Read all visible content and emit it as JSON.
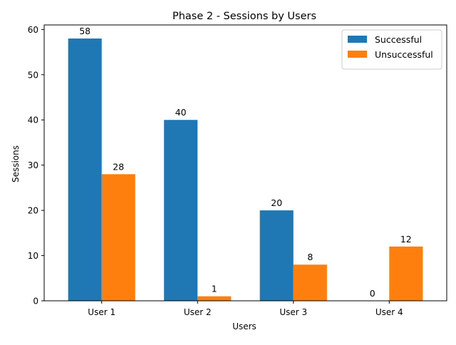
{
  "chart_data": {
    "type": "bar",
    "title": "Phase 2 - Sessions by Users",
    "xlabel": "Users",
    "ylabel": "Sessions",
    "categories": [
      "User 1",
      "User 2",
      "User 3",
      "User 4"
    ],
    "series": [
      {
        "name": "Successful",
        "values": [
          58,
          40,
          20,
          0
        ],
        "color": "#1f77b4"
      },
      {
        "name": "Unsuccessful",
        "values": [
          28,
          1,
          8,
          12
        ],
        "color": "#ff7f0e"
      }
    ],
    "ylim": [
      0,
      61
    ],
    "yticks": [
      0,
      10,
      20,
      30,
      40,
      50,
      60
    ],
    "legend_position": "top-right",
    "grid": false,
    "data_labels": true
  }
}
